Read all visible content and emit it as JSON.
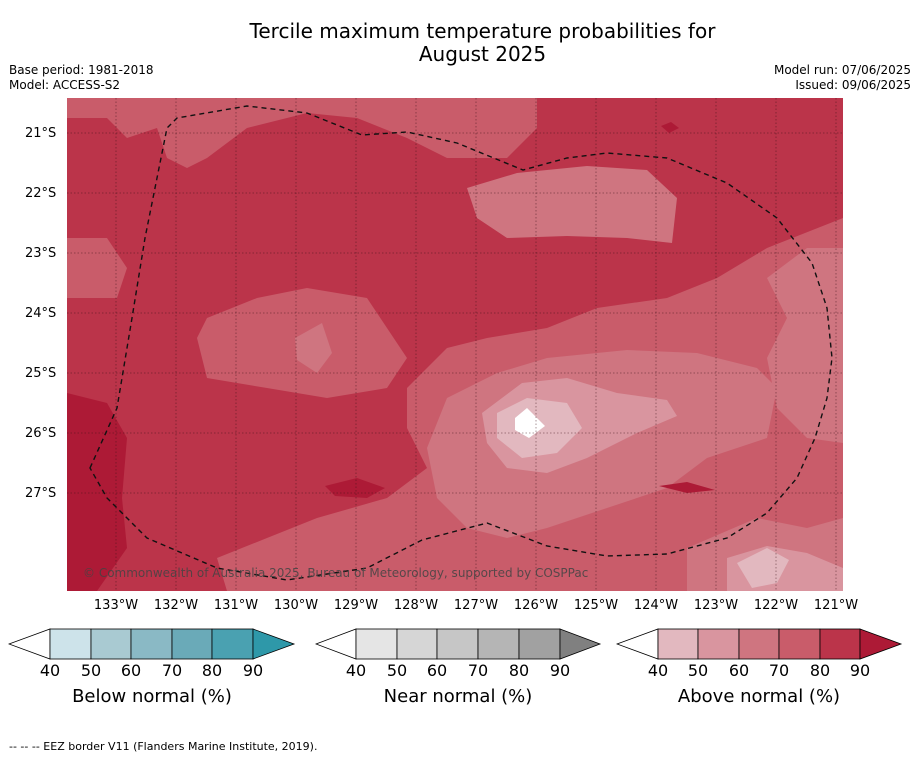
{
  "title_line1": "Tercile maximum temperature probabilities for",
  "title_line2": "August 2025",
  "base_period": "Base period: 1981-2018",
  "model": "Model: ACCESS-S2",
  "model_run": "Model run: 07/06/2025",
  "issued": "Issued: 09/06/2025",
  "copyright": "© Commonwealth of Australia 2025, Bureau of Meteorology, supported by COSPPac",
  "lat_ticks": [
    "21°S",
    "22°S",
    "23°S",
    "24°S",
    "25°S",
    "26°S",
    "27°S"
  ],
  "lon_ticks": [
    "133°W",
    "132°W",
    "131°W",
    "130°W",
    "129°W",
    "128°W",
    "127°W",
    "126°W",
    "125°W",
    "124°W",
    "123°W",
    "122°W",
    "121°W"
  ],
  "colorbars": [
    {
      "label": "Below normal (%)",
      "ticks": [
        "40",
        "50",
        "60",
        "70",
        "80",
        "90"
      ],
      "colors": [
        "#ffffff",
        "#cde3ea",
        "#a9cad2",
        "#8ab9c5",
        "#6aaab8",
        "#4aa1b1",
        "#2e98a9"
      ]
    },
    {
      "label": "Near normal (%)",
      "ticks": [
        "40",
        "50",
        "60",
        "70",
        "80",
        "90"
      ],
      "colors": [
        "#ffffff",
        "#e5e5e5",
        "#d6d6d6",
        "#c6c6c6",
        "#b5b5b5",
        "#a1a1a1",
        "#808080"
      ]
    },
    {
      "label": "Above normal (%)",
      "ticks": [
        "40",
        "50",
        "60",
        "70",
        "80",
        "90"
      ],
      "colors": [
        "#ffffff",
        "#e2b8bf",
        "#d9959f",
        "#cf7580",
        "#c95c6a",
        "#bb344a",
        "#ad1a36"
      ]
    }
  ],
  "footer": "--  --  -- EEZ border V11 (Flanders Marine Institute, 2019).",
  "map_colors": {
    "p50": "#e2b8bf",
    "p60": "#d9959f",
    "p70": "#cf7580",
    "p80": "#c95c6a",
    "p90": "#bb344a",
    "p95": "#ad1a36"
  }
}
